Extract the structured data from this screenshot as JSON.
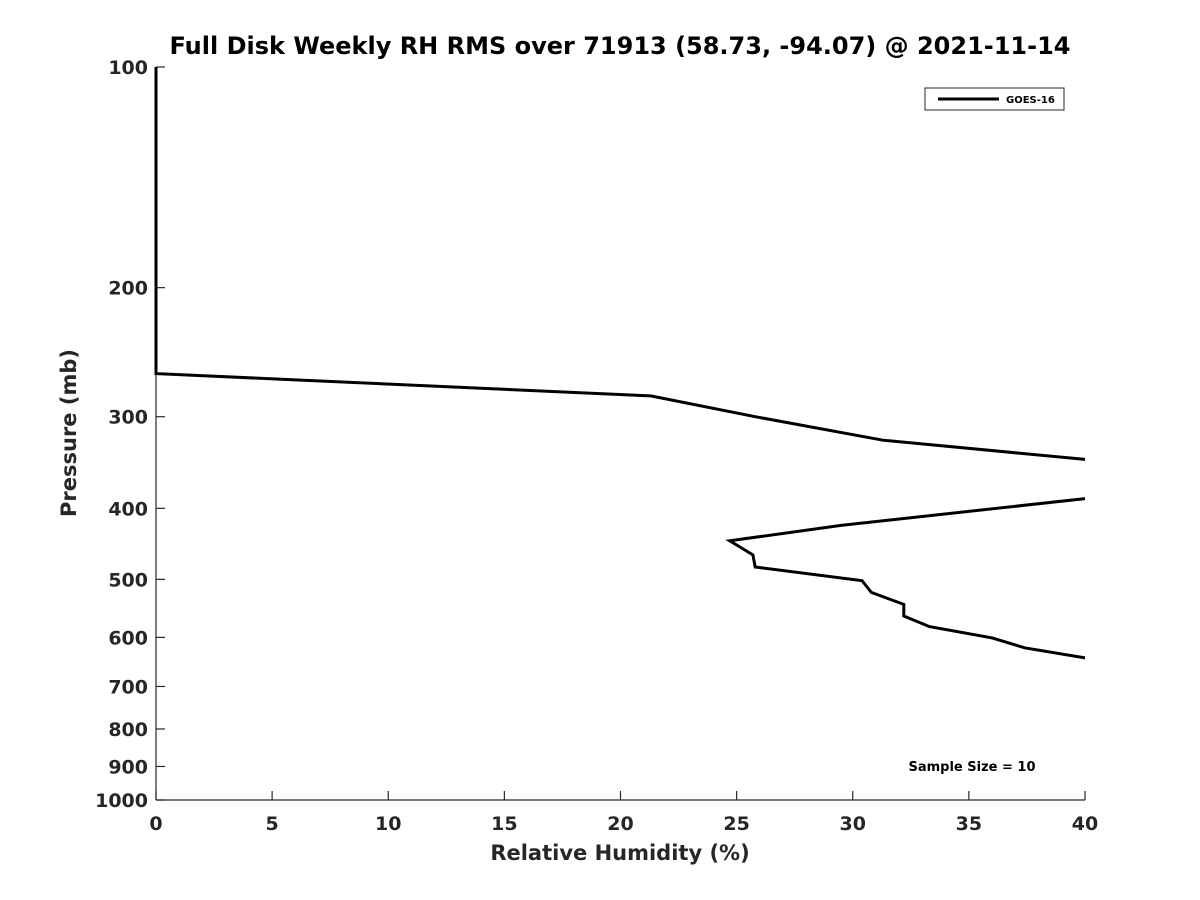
{
  "chart_data": {
    "type": "line",
    "title": "Full Disk Weekly RH RMS over 71913 (58.73, -94.07) @ 2021-11-14",
    "xlabel": "Relative Humidity (%)",
    "ylabel": "Pressure (mb)",
    "xlim": [
      0,
      40
    ],
    "ylim": [
      1000,
      100
    ],
    "yscale": "log",
    "y_reversed": true,
    "x_ticks": [
      0,
      5,
      10,
      15,
      20,
      25,
      30,
      35,
      40
    ],
    "y_ticks": [
      100,
      200,
      300,
      400,
      500,
      600,
      700,
      800,
      900,
      1000
    ],
    "grid": false,
    "legend_placement": "top-right",
    "series": [
      {
        "name": "GOES-16",
        "color": "#000000",
        "points": [
          {
            "x": 0.0,
            "y": 100
          },
          {
            "x": 0.0,
            "y": 150
          },
          {
            "x": 0.0,
            "y": 200
          },
          {
            "x": 0.0,
            "y": 262
          },
          {
            "x": 21.3,
            "y": 281
          },
          {
            "x": 25.8,
            "y": 300
          },
          {
            "x": 31.3,
            "y": 323
          },
          {
            "x": 40.0,
            "y": 343
          },
          {
            "x": null,
            "y": null
          },
          {
            "x": 40.0,
            "y": 388
          },
          {
            "x": 29.5,
            "y": 422
          },
          {
            "x": 24.7,
            "y": 443
          },
          {
            "x": 25.7,
            "y": 463
          },
          {
            "x": 25.8,
            "y": 481
          },
          {
            "x": 30.4,
            "y": 502
          },
          {
            "x": 30.8,
            "y": 521
          },
          {
            "x": 32.2,
            "y": 541
          },
          {
            "x": 32.2,
            "y": 561
          },
          {
            "x": 33.3,
            "y": 580
          },
          {
            "x": 36.0,
            "y": 601
          },
          {
            "x": 37.4,
            "y": 620
          },
          {
            "x": 40.0,
            "y": 640
          }
        ]
      }
    ],
    "annotation": "Sample Size = 10"
  }
}
